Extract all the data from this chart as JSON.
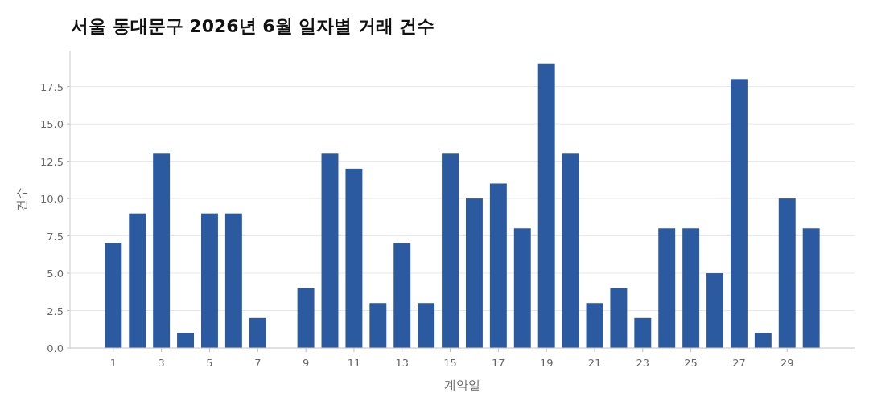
{
  "chart_data": {
    "type": "bar",
    "title": "서울 동대문구 2026년 6월 일자별 거래 건수",
    "xlabel": "계약일",
    "ylabel": "건수",
    "x": [
      1,
      2,
      3,
      4,
      5,
      6,
      7,
      8,
      9,
      10,
      11,
      12,
      13,
      14,
      15,
      16,
      17,
      18,
      19,
      20,
      21,
      22,
      23,
      24,
      25,
      26,
      27,
      28,
      29,
      30
    ],
    "values": [
      7,
      9,
      13,
      1,
      9,
      9,
      2,
      null,
      4,
      13,
      12,
      3,
      7,
      3,
      13,
      10,
      11,
      8,
      19,
      13,
      3,
      4,
      2,
      8,
      8,
      5,
      18,
      1,
      10,
      8
    ],
    "color": "#2c5aa0",
    "xlim": [
      -0.8,
      31.8
    ],
    "xticks": [
      1,
      3,
      5,
      7,
      9,
      11,
      13,
      15,
      17,
      19,
      21,
      23,
      25,
      27,
      29
    ],
    "ylim": [
      0,
      19.9
    ],
    "yticks": [
      {
        "value": 0,
        "label": "0.0"
      },
      {
        "value": 2.5,
        "label": "2.5"
      },
      {
        "value": 5,
        "label": "5.0"
      },
      {
        "value": 7.5,
        "label": "7.5"
      },
      {
        "value": 10,
        "label": "10.0"
      },
      {
        "value": 12.5,
        "label": "12.5"
      },
      {
        "value": 15,
        "label": "15.0"
      },
      {
        "value": 17.5,
        "label": "17.5"
      }
    ],
    "grid": "y"
  }
}
